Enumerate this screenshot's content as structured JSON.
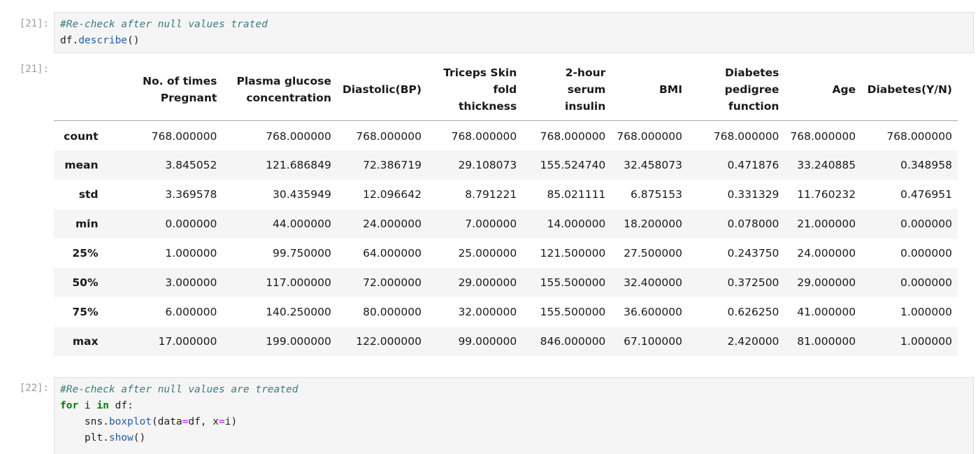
{
  "cells": {
    "cell21": {
      "in_prompt": "[21]:",
      "code_comment": "#Re-check after null values trated",
      "code_line2_obj": "df",
      "code_line2_dot": ".",
      "code_line2_fn": "describe",
      "code_line2_paren": "()",
      "out_prompt": "[21]:"
    },
    "cell22": {
      "in_prompt": "[22]:",
      "code_comment": "#Re-check after null values are treated",
      "line2_kw_for": "for",
      "line2_var": " i ",
      "line2_kw_in": "in",
      "line2_rest": " df:",
      "line3_indent": "    sns.",
      "line3_fn": "boxplot",
      "line3_a": "(data",
      "line3_eq1": "=",
      "line3_b": "df, x",
      "line3_eq2": "=",
      "line3_c": "i)",
      "line4_indent": "    plt.",
      "line4_fn": "show",
      "line4_paren": "()"
    }
  },
  "table": {
    "columns": [
      "No. of times Pregnant",
      "Plasma glucose concentration",
      "Diastolic(BP)",
      "Triceps Skin fold thickness",
      "2-hour serum insulin",
      "BMI",
      "Diabetes pedigree function",
      "Age",
      "Diabetes(Y/N)"
    ],
    "rows": [
      {
        "label": "count",
        "values": [
          "768.000000",
          "768.000000",
          "768.000000",
          "768.000000",
          "768.000000",
          "768.000000",
          "768.000000",
          "768.000000",
          "768.000000"
        ]
      },
      {
        "label": "mean",
        "values": [
          "3.845052",
          "121.686849",
          "72.386719",
          "29.108073",
          "155.524740",
          "32.458073",
          "0.471876",
          "33.240885",
          "0.348958"
        ]
      },
      {
        "label": "std",
        "values": [
          "3.369578",
          "30.435949",
          "12.096642",
          "8.791221",
          "85.021111",
          "6.875153",
          "0.331329",
          "11.760232",
          "0.476951"
        ]
      },
      {
        "label": "min",
        "values": [
          "0.000000",
          "44.000000",
          "24.000000",
          "7.000000",
          "14.000000",
          "18.200000",
          "0.078000",
          "21.000000",
          "0.000000"
        ]
      },
      {
        "label": "25%",
        "values": [
          "1.000000",
          "99.750000",
          "64.000000",
          "25.000000",
          "121.500000",
          "27.500000",
          "0.243750",
          "24.000000",
          "0.000000"
        ]
      },
      {
        "label": "50%",
        "values": [
          "3.000000",
          "117.000000",
          "72.000000",
          "29.000000",
          "155.500000",
          "32.400000",
          "0.372500",
          "29.000000",
          "0.000000"
        ]
      },
      {
        "label": "75%",
        "values": [
          "6.000000",
          "140.250000",
          "80.000000",
          "32.000000",
          "155.500000",
          "36.600000",
          "0.626250",
          "41.000000",
          "1.000000"
        ]
      },
      {
        "label": "max",
        "values": [
          "17.000000",
          "199.000000",
          "122.000000",
          "99.000000",
          "846.000000",
          "67.100000",
          "2.420000",
          "81.000000",
          "1.000000"
        ]
      }
    ]
  }
}
